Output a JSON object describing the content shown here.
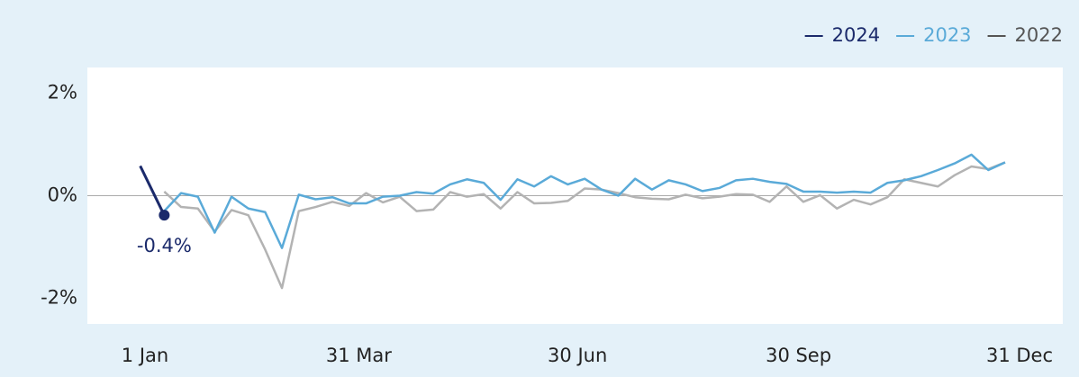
{
  "chart_data": {
    "type": "line",
    "x": [
      8,
      15,
      22,
      29,
      36,
      43,
      50,
      57,
      64,
      71,
      78,
      85,
      92,
      99,
      106,
      113,
      120,
      127,
      134,
      141,
      148,
      155,
      162,
      169,
      176,
      183,
      190,
      197,
      204,
      211,
      218,
      225,
      232,
      239,
      246,
      253,
      260,
      267,
      274,
      281,
      288,
      295,
      302,
      309,
      316,
      323,
      330,
      337,
      344,
      351,
      358
    ],
    "series": [
      {
        "name": "2024",
        "color": "#1b2a6b",
        "x": [
          -2,
          8
        ],
        "values": [
          0.58,
          -0.38
        ],
        "value_labels": [
          null,
          "-0.4%"
        ]
      },
      {
        "name": "2023",
        "color": "#5aaad8",
        "values": [
          -0.3,
          0.05,
          -0.02,
          -0.72,
          -0.02,
          -0.25,
          -0.32,
          -1.02,
          0.02,
          -0.07,
          -0.03,
          -0.15,
          -0.15,
          -0.02,
          0.0,
          0.07,
          0.04,
          0.22,
          0.32,
          0.25,
          -0.08,
          0.32,
          0.18,
          0.38,
          0.22,
          0.33,
          0.12,
          0.0,
          0.33,
          0.12,
          0.3,
          0.22,
          0.09,
          0.15,
          0.3,
          0.33,
          0.27,
          0.23,
          0.08,
          0.08,
          0.06,
          0.08,
          0.06,
          0.25,
          0.3,
          0.38,
          0.5,
          0.63,
          0.8,
          0.5,
          0.65
        ]
      },
      {
        "name": "2022",
        "color": "#b3b3b3",
        "values": [
          0.08,
          -0.22,
          -0.25,
          -0.7,
          -0.28,
          -0.38,
          -1.05,
          -1.8,
          -0.3,
          -0.22,
          -0.12,
          -0.2,
          0.05,
          -0.13,
          -0.02,
          -0.3,
          -0.27,
          0.07,
          -0.02,
          0.03,
          -0.25,
          0.07,
          -0.15,
          -0.14,
          -0.1,
          0.14,
          0.12,
          0.05,
          -0.03,
          -0.06,
          -0.07,
          0.02,
          -0.05,
          -0.02,
          0.03,
          0.02,
          -0.12,
          0.18,
          -0.12,
          0.01,
          -0.25,
          -0.08,
          -0.17,
          -0.03,
          0.32,
          0.25,
          0.18,
          0.4,
          0.57,
          0.52,
          0.65
        ]
      }
    ],
    "xlim": [
      -24,
      382
    ],
    "xticks": [
      {
        "value": 0,
        "label": "1 Jan"
      },
      {
        "value": 89,
        "label": "31 Mar"
      },
      {
        "value": 180,
        "label": "30 Jun"
      },
      {
        "value": 272,
        "label": "30 Sep"
      },
      {
        "value": 364,
        "label": "31 Dec"
      }
    ],
    "ylim": [
      -2.5,
      2.5
    ],
    "yticks": [
      {
        "value": 2,
        "label": "2%"
      },
      {
        "value": 0,
        "label": "0%"
      },
      {
        "value": -2,
        "label": "-2%"
      }
    ],
    "zeroline": true,
    "legend": "top-right"
  }
}
